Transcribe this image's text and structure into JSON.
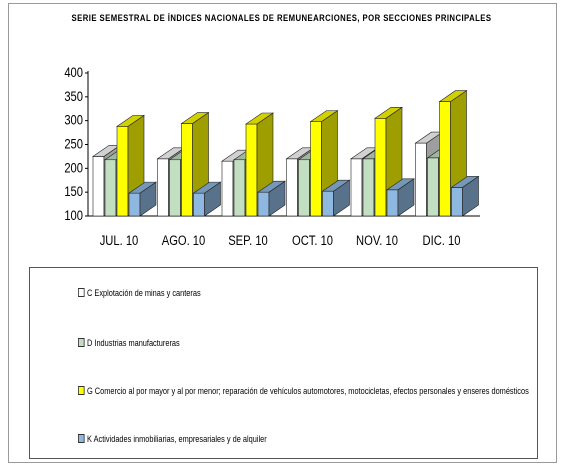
{
  "chart_data": {
    "type": "bar",
    "title": "SERIE SEMESTRAL DE ÍNDICES NACIONALES DE REMUNEARCIONES, POR SECCIONES PRINCIPALES",
    "categories": [
      "JUL. 10",
      "AGO. 10",
      "SEP. 10",
      "OCT. 10",
      "NOV. 10",
      "DIC. 10"
    ],
    "yticks": [
      "100",
      "150",
      "200",
      "250",
      "300",
      "350",
      "400"
    ],
    "ylim": [
      100,
      400
    ],
    "grid": false,
    "legend_position": "bottom",
    "series": [
      {
        "name": "C Explotación de minas y canteras",
        "color": "#ffffff",
        "values": [
          225,
          220,
          215,
          220,
          220,
          253
        ]
      },
      {
        "name": "D Industrias manufactureras",
        "color": "#c2dfc2",
        "values": [
          218,
          218,
          218,
          218,
          220,
          222
        ]
      },
      {
        "name": "G Comercio al por mayor y al por menor; reparación de vehículos automotores, motocicletas, efectos personales y enseres domésticos",
        "color": "#ffff00",
        "values": [
          288,
          294,
          293,
          298,
          305,
          340
        ]
      },
      {
        "name": "K Actividades inmobiliarias, empresariales y de alquiler",
        "color": "#8fb8e0",
        "values": [
          148,
          148,
          150,
          152,
          155,
          160
        ]
      }
    ]
  }
}
